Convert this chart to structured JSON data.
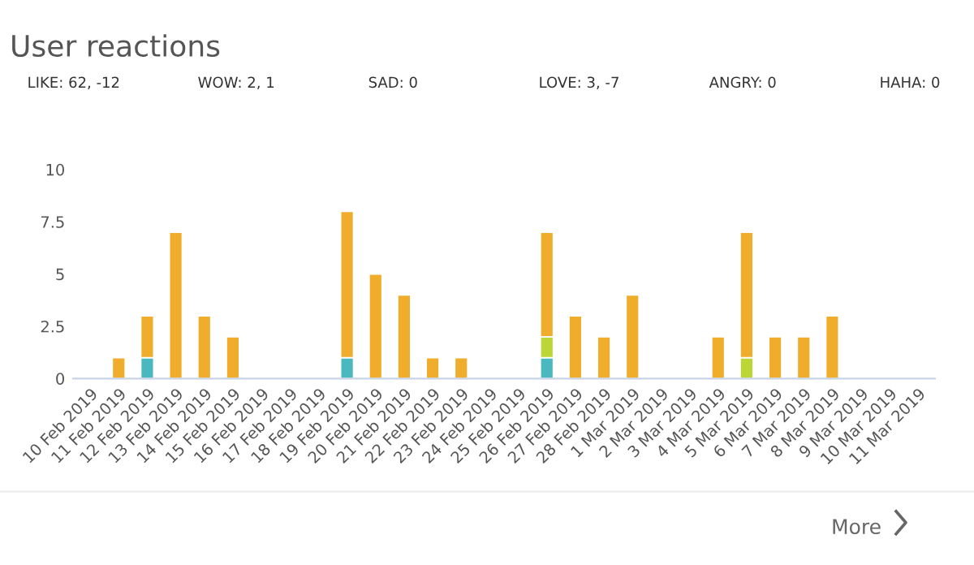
{
  "chart_data": {
    "type": "bar",
    "title": "User reactions",
    "stacked": true,
    "categories": [
      "10 Feb 2019",
      "11 Feb 2019",
      "12 Feb 2019",
      "13 Feb 2019",
      "14 Feb 2019",
      "15 Feb 2019",
      "16 Feb 2019",
      "17 Feb 2019",
      "18 Feb 2019",
      "19 Feb 2019",
      "20 Feb 2019",
      "21 Feb 2019",
      "22 Feb 2019",
      "23 Feb 2019",
      "24 Feb 2019",
      "25 Feb 2019",
      "26 Feb 2019",
      "27 Feb 2019",
      "28 Feb 2019",
      "1 Mar 2019",
      "2 Mar 2019",
      "3 Mar 2019",
      "4 Mar 2019",
      "5 Mar 2019",
      "6 Mar 2019",
      "7 Mar 2019",
      "8 Mar 2019",
      "9 Mar 2019",
      "10 Mar 2019",
      "11 Mar 2019"
    ],
    "series": [
      {
        "color": "#4ab8bf",
        "values": [
          null,
          null,
          1,
          null,
          null,
          null,
          null,
          null,
          null,
          1,
          null,
          null,
          null,
          null,
          null,
          null,
          1,
          null,
          null,
          null,
          null,
          null,
          null,
          null,
          null,
          null,
          null,
          null,
          null,
          null
        ]
      },
      {
        "color": "#bcd636",
        "values": [
          null,
          null,
          null,
          null,
          null,
          null,
          null,
          null,
          null,
          null,
          null,
          null,
          null,
          null,
          null,
          null,
          1,
          null,
          null,
          null,
          null,
          null,
          null,
          1,
          null,
          null,
          null,
          null,
          null,
          null
        ]
      },
      {
        "color": "#f0ad2b",
        "values": [
          null,
          1,
          2,
          7,
          3,
          2,
          null,
          null,
          null,
          7,
          5,
          4,
          1,
          1,
          null,
          null,
          5,
          3,
          2,
          4,
          null,
          null,
          2,
          6,
          2,
          2,
          3,
          null,
          null,
          null
        ]
      }
    ],
    "ylim": [
      0,
      10
    ],
    "yticks": [
      0,
      2.5,
      5,
      7.5,
      10
    ],
    "grid": false,
    "legend": false,
    "annotations": [
      "LIKE: 62, -12",
      "WOW: 2, 1",
      "SAD: 0",
      "LOVE: 3, -7",
      "ANGRY: 0",
      "HAHA: 0",
      "More"
    ]
  }
}
